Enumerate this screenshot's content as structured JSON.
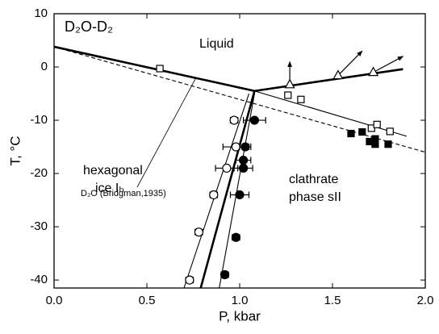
{
  "chart_data": {
    "type": "scatter",
    "title": "D₂O-D₂",
    "xlabel": "P, kbar",
    "ylabel": "T, °C",
    "xlim": [
      0,
      2.0
    ],
    "ylim": [
      -41.5,
      10
    ],
    "xticks": [
      {
        "value": 0,
        "label": "0.0"
      },
      0.5,
      {
        "value": 1,
        "label": "1.0"
      },
      1.5,
      {
        "value": 2,
        "label": "2.0"
      }
    ],
    "yticks": [
      10,
      0,
      -10,
      -20,
      -30,
      -40
    ],
    "annotations": [
      "Liquid",
      "D₂O (Bridgman,1935)",
      "hexagonal",
      "ice Iₕ",
      "clathrate",
      "phase sII"
    ],
    "series": [
      {
        "style": "thick",
        "color": "#000000",
        "x": [
          0,
          1.08
        ],
        "y": [
          3.8,
          -4.5
        ]
      },
      {
        "style": "thick",
        "color": "#000000",
        "x": [
          1.08,
          1.88
        ],
        "y": [
          -4.5,
          -0.4
        ]
      },
      {
        "style": "thin",
        "color": "#000000",
        "x": [
          1.08,
          1.9
        ],
        "y": [
          -4.5,
          -13
        ]
      },
      {
        "style": "dashed",
        "color": "#000000",
        "x": [
          0,
          2.0
        ],
        "y": [
          3.8,
          -16
        ]
      },
      {
        "style": "thick",
        "color": "#000000",
        "x": [
          0.79,
          1.08
        ],
        "y": [
          -41.5,
          -4.5
        ]
      },
      {
        "style": "thin",
        "color": "#000000",
        "x": [
          0.7,
          1.05
        ],
        "y": [
          -41.5,
          -5
        ]
      },
      {
        "style": "thin",
        "color": "#000000",
        "x": [
          0.89,
          1.08
        ],
        "y": [
          -41.5,
          -5
        ]
      },
      {
        "marker": "circle",
        "filled": false,
        "color": "#000000",
        "x": [
          0.97,
          0.98,
          0.93,
          0.86,
          0.78,
          0.73
        ],
        "y": [
          -10,
          -15,
          -19,
          -24,
          -31,
          -40
        ],
        "xerr": [
          0.02,
          0.07,
          0.06,
          0.02,
          0.02,
          0.02
        ]
      },
      {
        "marker": "circle",
        "filled": true,
        "color": "#000000",
        "x": [
          1.08,
          1.03,
          1.02,
          1.02,
          1.0,
          0.98,
          0.92
        ],
        "y": [
          -10,
          -15,
          -17.5,
          -19,
          -24,
          -32,
          -39
        ],
        "xerr": [
          0.06,
          0.03,
          0.04,
          0.05,
          0.05,
          0.02,
          0.02
        ]
      },
      {
        "marker": "square",
        "filled": false,
        "color": "#000000",
        "x": [
          0.57,
          1.26,
          1.33,
          1.71,
          1.74,
          1.81
        ],
        "y": [
          -0.3,
          -5.3,
          -6.1,
          -11.5,
          -10.8,
          -12.1
        ]
      },
      {
        "marker": "square",
        "filled": true,
        "color": "#000000",
        "x": [
          1.6,
          1.66,
          1.7,
          1.73,
          1.73,
          1.8
        ],
        "y": [
          -12.5,
          -12.2,
          -14,
          -13.5,
          -14.5,
          -14.5
        ]
      },
      {
        "marker": "triangle",
        "filled": false,
        "color": "#000000",
        "x": [
          1.27,
          1.53,
          1.72
        ],
        "y": [
          -3.3,
          -1.6,
          -1.0
        ],
        "arrow_x": [
          1.27,
          1.66,
          1.88
        ],
        "arrow_y": [
          1.0,
          3.0,
          2.0
        ]
      }
    ]
  }
}
